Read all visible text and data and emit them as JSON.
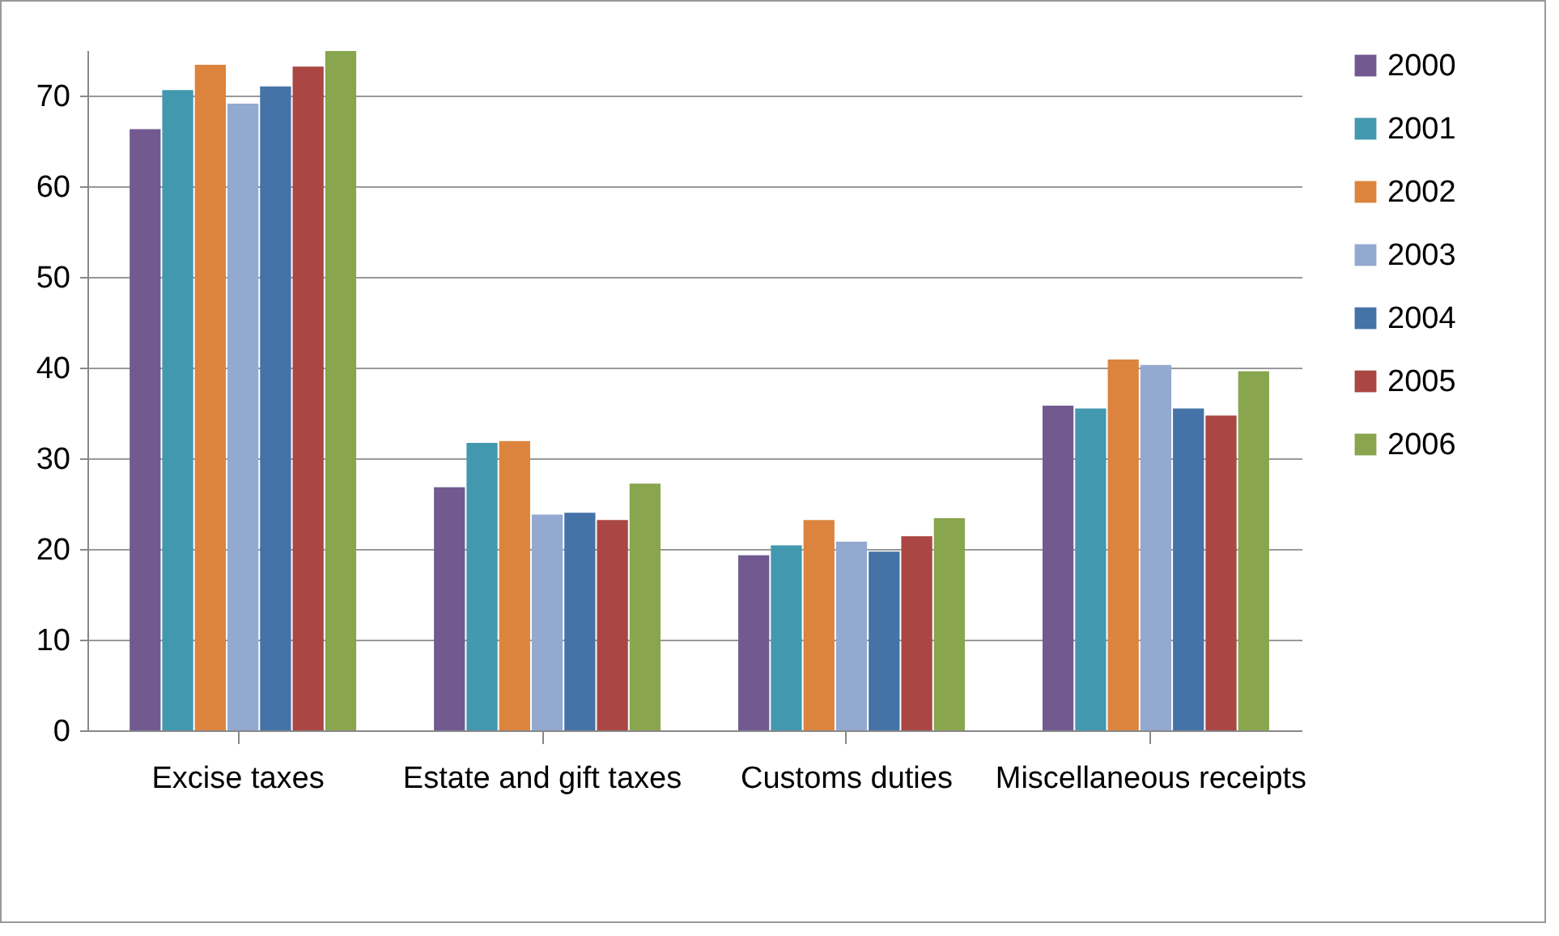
{
  "chart_data": {
    "type": "bar",
    "categories": [
      "Excise taxes",
      "Estate and gift taxes",
      "Customs duties",
      "Miscellaneous receipts"
    ],
    "series": [
      {
        "name": "2000",
        "color": "#725a91",
        "values": [
          66.3,
          26.8,
          19.3,
          35.8
        ]
      },
      {
        "name": "2001",
        "color": "#4298af",
        "values": [
          70.6,
          31.7,
          20.4,
          35.5
        ]
      },
      {
        "name": "2002",
        "color": "#dc843d",
        "values": [
          73.4,
          31.9,
          23.2,
          40.9
        ]
      },
      {
        "name": "2003",
        "color": "#94a9d0",
        "values": [
          69.1,
          23.8,
          20.8,
          40.3
        ]
      },
      {
        "name": "2004",
        "color": "#4572a7",
        "values": [
          71.0,
          24.0,
          19.7,
          35.5
        ]
      },
      {
        "name": "2005",
        "color": "#aa4643",
        "values": [
          73.2,
          23.2,
          21.4,
          34.7
        ]
      },
      {
        "name": "2006",
        "color": "#89a54e",
        "values": [
          74.9,
          27.2,
          23.4,
          39.6
        ]
      }
    ],
    "ylim": [
      0,
      75
    ],
    "yticks": [
      0,
      10,
      20,
      30,
      40,
      50,
      60,
      70
    ],
    "grid": "y",
    "legend": "right"
  }
}
